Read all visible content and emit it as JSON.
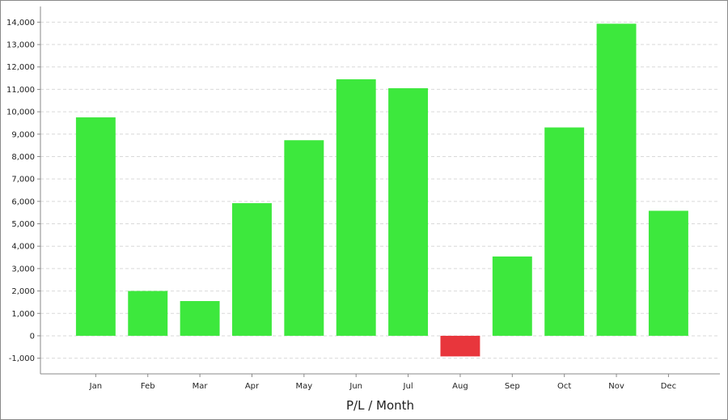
{
  "chart_data": {
    "type": "bar",
    "title": "",
    "xlabel": "P/L / Month",
    "ylabel": "",
    "categories": [
      "Jan",
      "Feb",
      "Mar",
      "Apr",
      "May",
      "Jun",
      "Jul",
      "Aug",
      "Sep",
      "Oct",
      "Nov",
      "Dec"
    ],
    "values": [
      9750,
      2000,
      1550,
      5920,
      8730,
      11450,
      11050,
      -920,
      3540,
      9300,
      13930,
      5580
    ],
    "ylim": [
      -1700,
      14700
    ],
    "yticks": [
      -1000,
      0,
      1000,
      2000,
      3000,
      4000,
      5000,
      6000,
      7000,
      8000,
      9000,
      10000,
      11000,
      12000,
      13000,
      14000
    ],
    "ytick_labels": [
      "-1,000",
      "0",
      "1,000",
      "2,000",
      "3,000",
      "4,000",
      "5,000",
      "6,000",
      "7,000",
      "8,000",
      "9,000",
      "10,000",
      "11,000",
      "12,000",
      "13,000",
      "14,000"
    ],
    "grid": true,
    "positive_color": "#3de83d",
    "negative_color": "#e8363c",
    "grid_color": "#d9d9d9",
    "axis_color": "#8a8a8a"
  }
}
